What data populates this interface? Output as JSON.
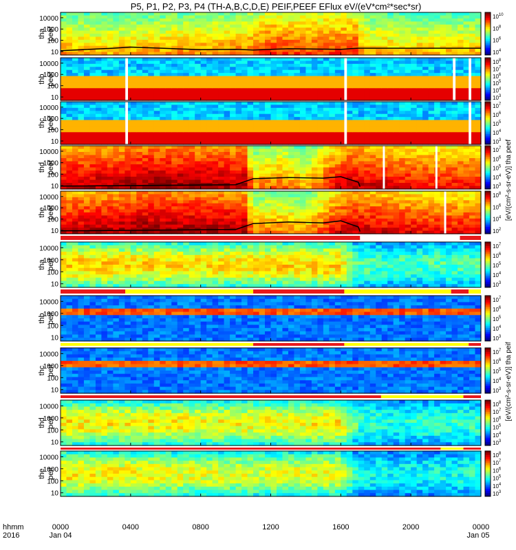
{
  "chart_data": {
    "type": "heatmap",
    "title": "P5, P1, P2, P3, P4 (TH-A,B,C,D,E) PEIF,PEEF EFlux eV/(eV*cm²*sec*sr)",
    "x_axis": {
      "label_row1": "hhmm",
      "label_row2": "2016",
      "ticks": [
        "0000",
        "0400",
        "0800",
        "1200",
        "1600",
        "2000",
        "0000"
      ],
      "tick_hours": [
        0,
        4,
        8,
        12,
        16,
        20,
        24
      ],
      "date_labels": [
        "Jan 04",
        "Jan 05"
      ],
      "range_hours": [
        0,
        24
      ]
    },
    "y_axis": {
      "scale": "log",
      "ticks": [
        "10",
        "100",
        "1000",
        "10000"
      ],
      "range": [
        5,
        30000
      ]
    },
    "panels": [
      {
        "id": "tha-peef",
        "label1": "tha",
        "label2": "peef",
        "cbar_exps": [
          4,
          6,
          8,
          10
        ],
        "cbar_label": "",
        "profile": [
          [
            0,
            0.55
          ],
          [
            3,
            0.6
          ],
          [
            6,
            0.55
          ],
          [
            10.5,
            0.5
          ],
          [
            11,
            0.45
          ],
          [
            12,
            0.35
          ],
          [
            14,
            0.4
          ],
          [
            17,
            0.35
          ],
          [
            17.2,
            0.55
          ],
          [
            19,
            0.6
          ],
          [
            21,
            0.6
          ],
          [
            24,
            0.6
          ]
        ],
        "gaps": [],
        "density_line": [
          [
            0,
            12
          ],
          [
            3,
            20
          ],
          [
            4,
            25
          ],
          [
            8,
            15
          ],
          [
            10,
            16
          ],
          [
            11,
            14
          ],
          [
            13,
            18
          ],
          [
            16,
            16
          ],
          [
            17,
            20
          ],
          [
            24,
            20
          ]
        ]
      },
      {
        "id": "thb-peef",
        "label1": "thb",
        "label2": "peef",
        "cbar_exps": [
          3,
          4,
          5,
          6,
          7,
          8
        ],
        "cbar_label": "",
        "profile": [
          [
            0,
            0.9
          ],
          [
            24,
            0.9
          ]
        ],
        "gaps": [
          [
            3.7,
            3.85
          ],
          [
            16.2,
            16.35
          ],
          [
            22.4,
            22.55
          ],
          [
            23.3,
            23.45
          ]
        ],
        "density_line": []
      },
      {
        "id": "thc-peef",
        "label1": "thc",
        "label2": "peef",
        "cbar_exps": [
          3,
          4,
          5,
          6,
          7
        ],
        "cbar_label": "",
        "profile": [
          [
            0,
            0.95
          ],
          [
            24,
            0.95
          ]
        ],
        "gaps": [
          [
            3.7,
            3.85
          ],
          [
            16.2,
            16.35
          ],
          [
            23.3,
            23.45
          ]
        ],
        "density_line": []
      },
      {
        "id": "thd-peef",
        "label1": "thd",
        "label2": "peef",
        "cbar_exps": [
          3,
          4,
          5,
          6,
          7
        ],
        "cbar_label": "",
        "profile": [
          [
            0,
            0.2
          ],
          [
            3.5,
            0.15
          ],
          [
            4.5,
            0.1
          ],
          [
            10.5,
            0.15
          ],
          [
            11,
            0.55
          ],
          [
            12.5,
            0.45
          ],
          [
            14,
            0.6
          ],
          [
            15.5,
            0.3
          ],
          [
            16.5,
            0.2
          ],
          [
            17.2,
            0.2
          ],
          [
            19,
            0.25
          ],
          [
            21,
            0.3
          ],
          [
            24,
            0.3
          ]
        ],
        "gaps": [
          [
            18.4,
            18.5
          ],
          [
            21.4,
            21.5
          ]
        ],
        "density_line": [
          [
            0,
            9
          ],
          [
            10,
            12
          ],
          [
            11,
            40
          ],
          [
            13,
            50
          ],
          [
            15,
            45
          ],
          [
            16,
            60
          ],
          [
            17,
            20
          ],
          [
            17.1,
            8
          ]
        ]
      },
      {
        "id": "the-peef",
        "label1": "the",
        "label2": "peef",
        "cbar_exps": [
          2,
          4,
          6,
          8
        ],
        "cbar_label": "",
        "profile": [
          [
            0,
            0.2
          ],
          [
            3.5,
            0.15
          ],
          [
            4.5,
            0.1
          ],
          [
            10.5,
            0.15
          ],
          [
            11,
            0.55
          ],
          [
            12.5,
            0.5
          ],
          [
            14,
            0.6
          ],
          [
            15.5,
            0.3
          ],
          [
            16.5,
            0.2
          ],
          [
            17.2,
            0.2
          ],
          [
            19,
            0.25
          ],
          [
            21,
            0.3
          ],
          [
            24,
            0.3
          ]
        ],
        "gaps": [
          [
            21.9,
            22.0
          ]
        ],
        "density_line": [
          [
            0,
            9
          ],
          [
            10,
            12
          ],
          [
            11,
            40
          ],
          [
            13,
            55
          ],
          [
            15,
            45
          ],
          [
            16,
            70
          ],
          [
            17,
            20
          ],
          [
            17.1,
            8
          ]
        ]
      },
      {
        "id": "tha-peif",
        "label1": "tha",
        "label2": "peif",
        "cbar_exps": [
          3,
          4,
          5,
          6,
          7
        ],
        "cbar_label": "",
        "profile": [
          [
            0,
            1.0
          ],
          [
            8,
            0.95
          ],
          [
            16,
            1.0
          ],
          [
            17,
            0.65
          ],
          [
            19,
            0.6
          ],
          [
            24,
            0.65
          ]
        ],
        "gaps": [],
        "density_line": []
      },
      {
        "id": "thb-peif",
        "label1": "thb",
        "label2": "peif",
        "cbar_exps": [
          3,
          4,
          5,
          6,
          7
        ],
        "cbar_label": "",
        "profile": [
          [
            0,
            1.0
          ],
          [
            24,
            1.0
          ]
        ],
        "gaps": [],
        "density_line": []
      },
      {
        "id": "thc-peif",
        "label1": "thc",
        "label2": "peif",
        "cbar_exps": [
          3,
          4,
          5,
          6,
          7
        ],
        "cbar_label": "",
        "profile": [
          [
            0,
            1.0
          ],
          [
            24,
            1.0
          ]
        ],
        "gaps": [],
        "density_line": []
      },
      {
        "id": "thd-peif",
        "label1": "thd",
        "label2": "peif",
        "cbar_exps": [
          3,
          4,
          5,
          6,
          7,
          8
        ],
        "cbar_label": "",
        "profile": [
          [
            0,
            0.95
          ],
          [
            11,
            0.9
          ],
          [
            16,
            0.95
          ],
          [
            17,
            0.6
          ],
          [
            19,
            0.55
          ],
          [
            24,
            0.6
          ]
        ],
        "gaps": [],
        "density_line": []
      },
      {
        "id": "the-peif",
        "label1": "the",
        "label2": "peif",
        "cbar_exps": [
          3,
          4,
          5,
          6,
          7,
          8
        ],
        "cbar_label": "",
        "profile": [
          [
            0,
            0.95
          ],
          [
            11,
            0.85
          ],
          [
            16,
            0.9
          ],
          [
            17,
            0.55
          ],
          [
            19,
            0.5
          ],
          [
            24,
            0.55
          ]
        ],
        "gaps": [],
        "density_line": []
      }
    ],
    "cbar_side_label_peef": "[eV/(cm²-s-sr-eV)] tha peef",
    "cbar_side_label_peif": "[eV/(cm²-s-sr-eV)] tha peif",
    "mode_bars": [
      {
        "after_panel": 4,
        "segments": [
          [
            0,
            17.1,
            "#e8191b"
          ],
          [
            17.1,
            22.8,
            "#ffffff"
          ],
          [
            22.8,
            24,
            "#e8191b"
          ]
        ]
      },
      {
        "after_panel": 5,
        "segments": [
          [
            0,
            3.7,
            "#e8191b"
          ],
          [
            3.7,
            11.0,
            "#ffff00"
          ],
          [
            11.0,
            16.2,
            "#e8191b"
          ],
          [
            16.2,
            22.3,
            "#ffff00"
          ],
          [
            22.3,
            23.3,
            "#e8191b"
          ],
          [
            23.3,
            24,
            "#ffff00"
          ]
        ]
      },
      {
        "after_panel": 6,
        "segments": [
          [
            0,
            11.0,
            "#ffff00"
          ],
          [
            11.0,
            16.2,
            "#e8191b"
          ],
          [
            16.2,
            23.3,
            "#ffff00"
          ],
          [
            23.3,
            24,
            "#e8191b"
          ]
        ]
      },
      {
        "after_panel": 7,
        "segments": [
          [
            0,
            18.3,
            "#e8191b"
          ],
          [
            18.3,
            23.0,
            "#ffff00"
          ],
          [
            23.0,
            24,
            "#e8191b"
          ]
        ]
      },
      {
        "after_panel": 8,
        "segments": [
          [
            0,
            21.7,
            "#e8191b"
          ],
          [
            21.7,
            23.0,
            "#ffff00"
          ],
          [
            23.0,
            24,
            "#e8191b"
          ]
        ]
      }
    ]
  }
}
